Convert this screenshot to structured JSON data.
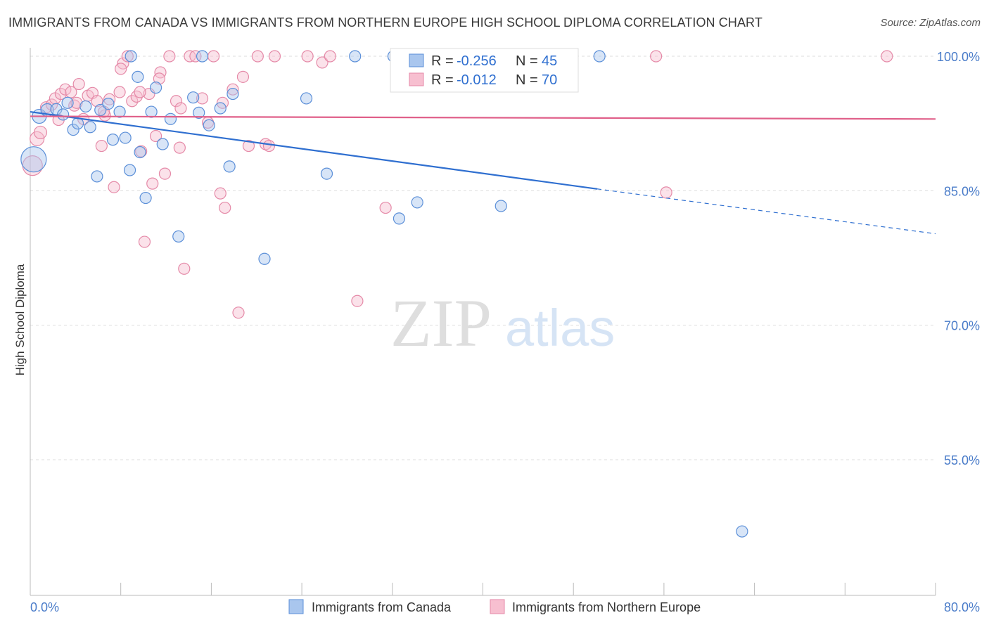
{
  "header": {
    "title": "IMMIGRANTS FROM CANADA VS IMMIGRANTS FROM NORTHERN EUROPE HIGH SCHOOL DIPLOMA CORRELATION CHART",
    "source": "Source: ZipAtlas.com"
  },
  "watermark": {
    "zip": "ZIP",
    "atlas": "atlas"
  },
  "colors": {
    "canada_fill": "#a9c6ee",
    "canada_stroke": "#5b8fd8",
    "canada_line": "#2f6fd0",
    "europe_fill": "#f7bfd0",
    "europe_stroke": "#e58aa8",
    "europe_line": "#e0608a",
    "grid": "#dddddd",
    "label": "#4a7cc9"
  },
  "legend": {
    "r_label": "R =",
    "n_label": "N =",
    "canada": {
      "r": "-0.256",
      "n": "45"
    },
    "europe": {
      "r": "-0.012",
      "n": "70"
    }
  },
  "chart_data": {
    "type": "scatter",
    "title": "IMMIGRANTS FROM CANADA VS IMMIGRANTS FROM NORTHERN EUROPE HIGH SCHOOL DIPLOMA CORRELATION CHART",
    "xlabel": "",
    "ylabel": "High School Diploma",
    "xlim": [
      0,
      80
    ],
    "ylim": [
      40,
      102
    ],
    "x_tick_labels": [
      "0.0%",
      "80.0%"
    ],
    "y_ticks": [
      55,
      70,
      85,
      100
    ],
    "y_tick_labels": [
      "55.0%",
      "70.0%",
      "85.0%",
      "100.0%"
    ],
    "grid": true,
    "legend_position": "top-center",
    "series": [
      {
        "name": "Immigrants from Canada",
        "color": "#5b8fd8",
        "trend": {
          "x": [
            0,
            50.1
          ],
          "y": [
            93.8,
            85.2
          ],
          "dashed_to": [
            80,
            80.2
          ]
        },
        "points": [
          [
            0.3,
            88.5,
            18
          ],
          [
            0.8,
            93.3,
            10
          ],
          [
            1.5,
            94.0,
            9
          ],
          [
            2.3,
            94.1,
            8
          ],
          [
            2.9,
            93.5,
            8
          ],
          [
            3.3,
            94.8,
            8
          ],
          [
            3.8,
            91.8,
            8
          ],
          [
            4.2,
            92.5,
            8
          ],
          [
            4.9,
            94.4,
            8
          ],
          [
            5.3,
            92.1,
            8
          ],
          [
            5.9,
            86.6,
            8
          ],
          [
            6.2,
            94.0,
            8
          ],
          [
            6.9,
            94.7,
            8
          ],
          [
            7.3,
            90.7,
            8
          ],
          [
            7.9,
            93.8,
            8
          ],
          [
            8.4,
            90.9,
            8
          ],
          [
            8.8,
            87.3,
            8
          ],
          [
            9.5,
            97.7,
            8
          ],
          [
            9.7,
            89.3,
            8
          ],
          [
            10.2,
            84.2,
            8
          ],
          [
            10.7,
            93.8,
            8
          ],
          [
            11.1,
            96.5,
            8
          ],
          [
            11.7,
            90.2,
            8
          ],
          [
            12.4,
            93.0,
            8
          ],
          [
            13.1,
            79.9,
            8
          ],
          [
            15.2,
            100.0,
            8
          ],
          [
            14.4,
            95.4,
            8
          ],
          [
            14.9,
            93.7,
            8
          ],
          [
            15.8,
            92.3,
            8
          ],
          [
            16.8,
            94.2,
            8
          ],
          [
            17.6,
            87.7,
            8
          ],
          [
            17.9,
            95.8,
            8
          ],
          [
            20.7,
            77.4,
            8
          ],
          [
            24.4,
            95.3,
            8
          ],
          [
            26.2,
            86.9,
            8
          ],
          [
            28.7,
            100.0,
            8
          ],
          [
            32.1,
            100.0,
            8
          ],
          [
            32.6,
            81.9,
            8
          ],
          [
            34.2,
            83.7,
            8
          ],
          [
            34.7,
            100.0,
            9
          ],
          [
            41.6,
            83.3,
            8
          ],
          [
            50.3,
            100.0,
            8
          ],
          [
            62.9,
            47.0,
            8
          ],
          [
            33.5,
            100.0,
            8
          ],
          [
            8.9,
            100.0,
            8
          ]
        ]
      },
      {
        "name": "Immigrants from Northern Europe",
        "color": "#e58aa8",
        "trend": {
          "x": [
            0,
            80
          ],
          "y": [
            93.3,
            93.0
          ]
        },
        "points": [
          [
            0.2,
            87.8,
            14
          ],
          [
            0.6,
            90.8,
            10
          ],
          [
            0.9,
            91.5,
            9
          ],
          [
            1.4,
            94.3,
            8
          ],
          [
            1.9,
            94.6,
            8
          ],
          [
            2.2,
            95.3,
            8
          ],
          [
            2.7,
            95.8,
            8
          ],
          [
            3.1,
            96.3,
            8
          ],
          [
            3.6,
            96.0,
            8
          ],
          [
            3.9,
            94.5,
            8
          ],
          [
            4.3,
            96.9,
            8
          ],
          [
            4.7,
            93.0,
            8
          ],
          [
            5.1,
            95.6,
            8
          ],
          [
            5.5,
            95.9,
            8
          ],
          [
            5.9,
            95.0,
            8
          ],
          [
            6.3,
            90.0,
            8
          ],
          [
            6.6,
            93.4,
            8
          ],
          [
            7.0,
            95.2,
            8
          ],
          [
            7.4,
            85.4,
            8
          ],
          [
            7.9,
            96.0,
            8
          ],
          [
            8.2,
            99.2,
            8
          ],
          [
            8.6,
            100.0,
            8
          ],
          [
            9.0,
            95.0,
            8
          ],
          [
            9.4,
            95.5,
            8
          ],
          [
            9.8,
            89.4,
            8
          ],
          [
            10.1,
            79.3,
            8
          ],
          [
            10.5,
            95.8,
            8
          ],
          [
            10.8,
            85.8,
            8
          ],
          [
            11.1,
            91.1,
            8
          ],
          [
            11.5,
            98.2,
            8
          ],
          [
            11.9,
            86.9,
            8
          ],
          [
            12.3,
            100.0,
            8
          ],
          [
            12.9,
            95.0,
            8
          ],
          [
            13.2,
            89.8,
            8
          ],
          [
            13.6,
            76.3,
            8
          ],
          [
            14.1,
            100.0,
            8
          ],
          [
            14.6,
            100.0,
            8
          ],
          [
            15.2,
            95.3,
            8
          ],
          [
            15.7,
            92.6,
            8
          ],
          [
            16.2,
            100.0,
            8
          ],
          [
            16.8,
            84.7,
            8
          ],
          [
            17.2,
            83.1,
            8
          ],
          [
            17.9,
            96.3,
            8
          ],
          [
            18.4,
            71.4,
            8
          ],
          [
            18.8,
            97.7,
            8
          ],
          [
            19.3,
            90.0,
            8
          ],
          [
            20.1,
            100.0,
            8
          ],
          [
            20.8,
            90.2,
            8
          ],
          [
            21.1,
            90.0,
            8
          ],
          [
            24.5,
            100.0,
            8
          ],
          [
            25.8,
            99.3,
            8
          ],
          [
            26.5,
            100.0,
            8
          ],
          [
            28.9,
            72.7,
            8
          ],
          [
            31.4,
            83.1,
            8
          ],
          [
            32.7,
            100.0,
            8
          ],
          [
            35.3,
            100.0,
            8
          ],
          [
            40.5,
            100.0,
            8
          ],
          [
            42.8,
            100.0,
            8
          ],
          [
            55.3,
            100.0,
            8
          ],
          [
            56.2,
            84.8,
            8
          ],
          [
            75.7,
            100.0,
            8
          ],
          [
            6.5,
            93.8,
            8
          ],
          [
            2.5,
            92.9,
            8
          ],
          [
            4.1,
            94.8,
            8
          ],
          [
            8.0,
            98.6,
            8
          ],
          [
            9.7,
            96.0,
            8
          ],
          [
            11.4,
            97.5,
            8
          ],
          [
            13.3,
            94.2,
            8
          ],
          [
            17.0,
            94.8,
            8
          ],
          [
            21.6,
            100.0,
            8
          ]
        ]
      }
    ]
  },
  "bottom_legend": {
    "canada_label": "Immigrants from Canada",
    "europe_label": "Immigrants from Northern Europe"
  }
}
